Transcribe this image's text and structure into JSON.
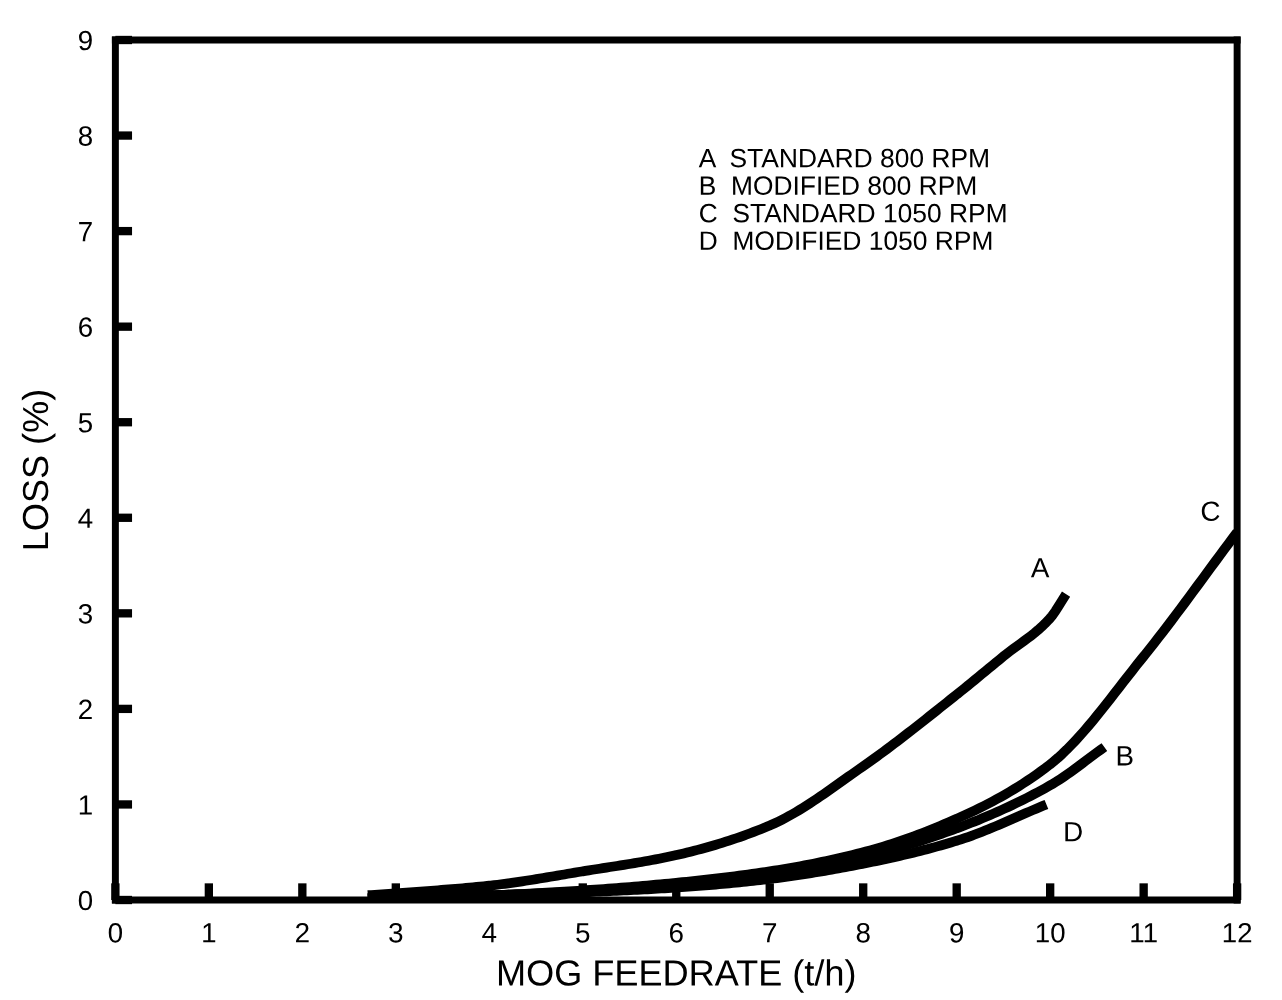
{
  "chart_data": {
    "type": "line",
    "xlabel": "MOG FEEDRATE (t/h)",
    "ylabel": "LOSS (%)",
    "xlim": [
      0,
      12
    ],
    "xticks": [
      0,
      1,
      2,
      3,
      4,
      5,
      6,
      7,
      8,
      9,
      10,
      11,
      12
    ],
    "ylim": [
      0,
      9
    ],
    "yticks": [
      0,
      1,
      2,
      3,
      4,
      5,
      6,
      7,
      8,
      9
    ],
    "grid": false,
    "legend": false,
    "marker": "none",
    "line_style": "solid",
    "series": [
      {
        "name": "A",
        "color": "#000000",
        "x": [
          2.7,
          3,
          4,
          5,
          6,
          7,
          8,
          9,
          9.5,
          10,
          10.17
        ],
        "values": [
          0.05,
          0.07,
          0.15,
          0.3,
          0.47,
          0.78,
          1.4,
          2.15,
          2.55,
          2.95,
          3.2
        ]
      },
      {
        "name": "B",
        "color": "#000000",
        "x": [
          2.7,
          3,
          4,
          5,
          6,
          7,
          8,
          9,
          10,
          10.58
        ],
        "values": [
          0.02,
          0.03,
          0.05,
          0.09,
          0.15,
          0.27,
          0.45,
          0.75,
          1.2,
          1.6
        ]
      },
      {
        "name": "C",
        "color": "#000000",
        "x": [
          2.7,
          3,
          4,
          5,
          6,
          7,
          8,
          9,
          10,
          11,
          12
        ],
        "values": [
          0.02,
          0.03,
          0.05,
          0.1,
          0.18,
          0.3,
          0.5,
          0.85,
          1.42,
          2.55,
          3.85
        ]
      },
      {
        "name": "D",
        "color": "#000000",
        "x": [
          2.7,
          3,
          4,
          5,
          6,
          7,
          8,
          9,
          9.96
        ],
        "values": [
          0.01,
          0.02,
          0.04,
          0.08,
          0.13,
          0.22,
          0.38,
          0.62,
          1.0
        ]
      }
    ],
    "annotations": [
      "A  STANDARD 800 RPM",
      "B  MODIFIED 800 RPM",
      "C  STANDARD 1050 RPM",
      "D  MODIFIED 1050 RPM"
    ]
  }
}
